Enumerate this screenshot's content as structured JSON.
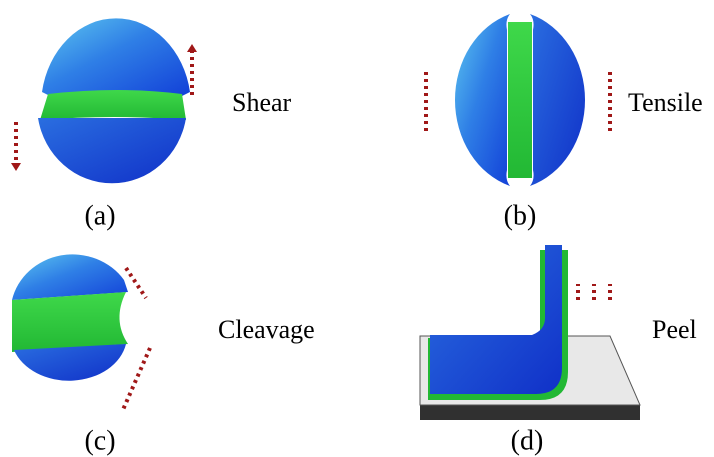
{
  "panels": [
    {
      "label": "Shear",
      "caption": "(a)"
    },
    {
      "label": "Tensile",
      "caption": "(b)"
    },
    {
      "label": "Cleavage",
      "caption": "(c)"
    },
    {
      "label": "Peel",
      "caption": "(d)"
    }
  ]
}
